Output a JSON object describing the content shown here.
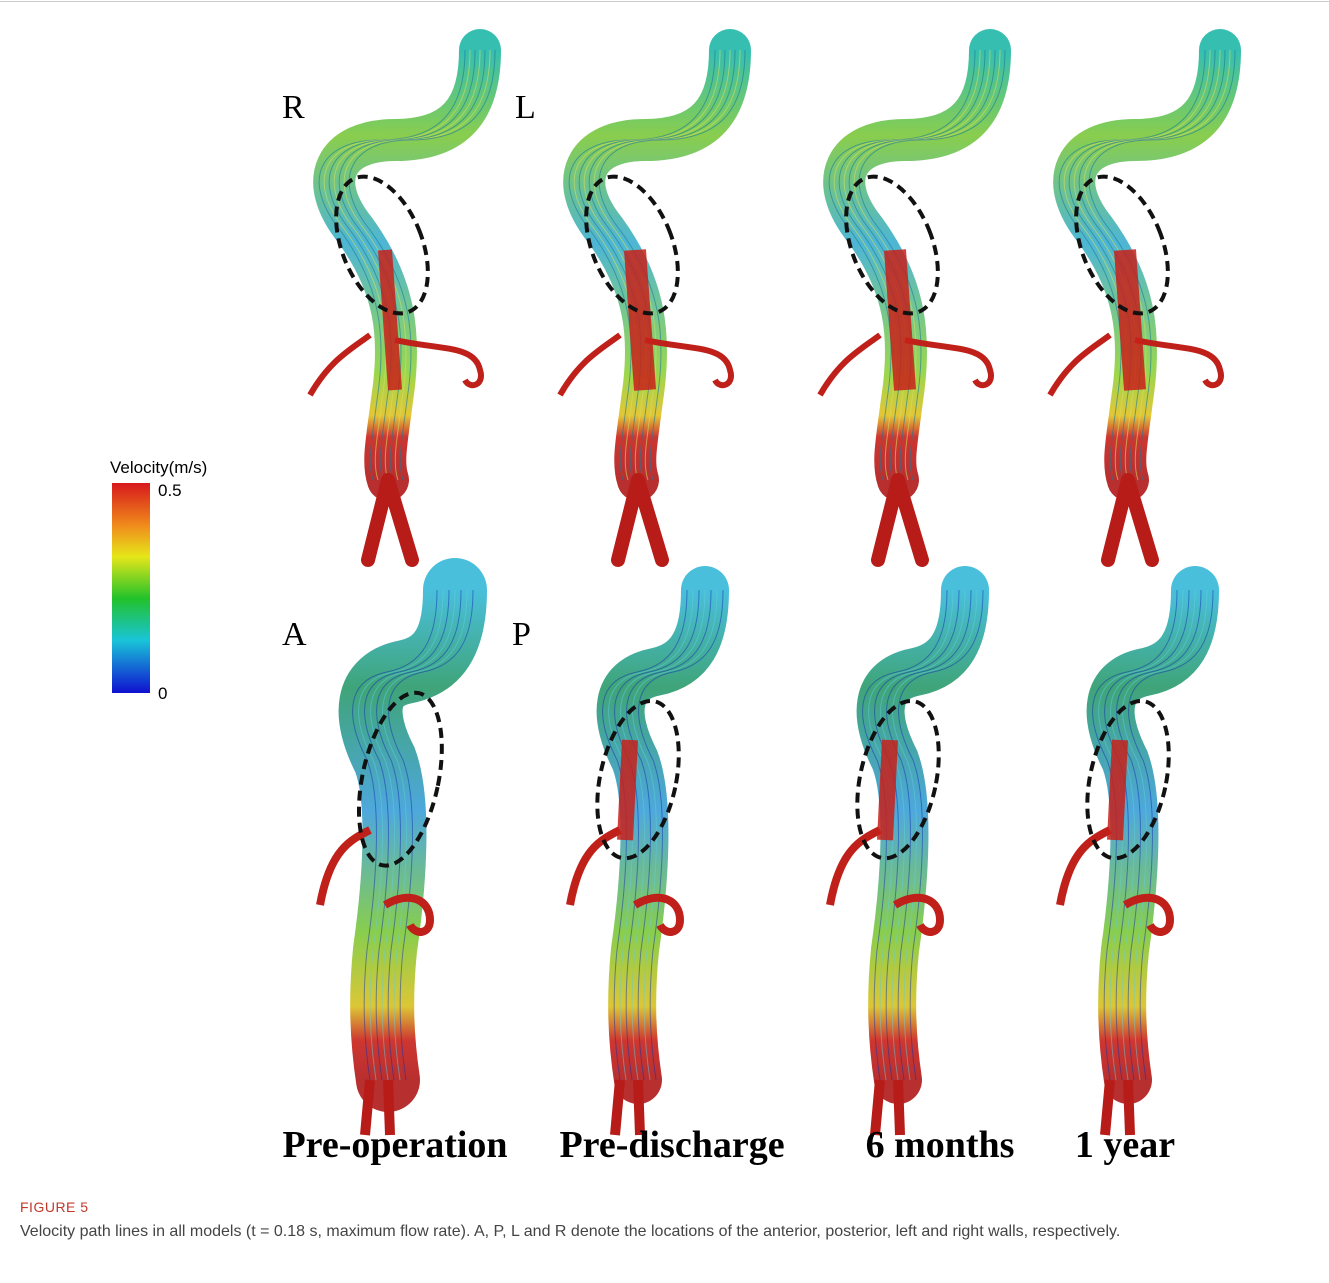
{
  "figure": {
    "colorbar": {
      "title": "Velocity(m/s)",
      "ticks": [
        0,
        0.5
      ]
    },
    "orientation_labels": {
      "top_left": "R",
      "top_right": "L",
      "bottom_left": "A",
      "bottom_right": "P"
    },
    "columns": [
      "Pre-operation",
      "Pre-discharge",
      "6 months",
      "1 year"
    ],
    "label": "FIGURE 5",
    "caption": "Velocity path lines in all models (t = 0.18 s, maximum flow rate). A, P, L and R denote the locations of the anterior, posterior, left and right walls, respectively."
  }
}
